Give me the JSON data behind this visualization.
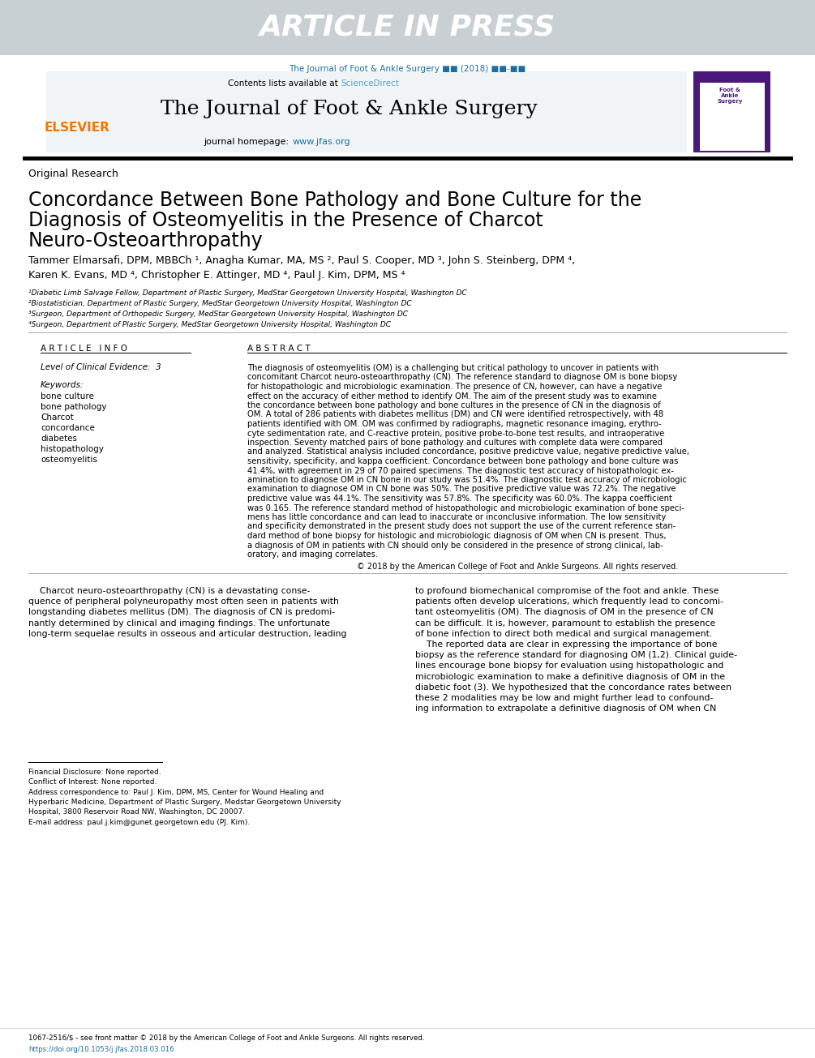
{
  "article_in_press_text": "ARTICLE IN PRESS",
  "article_in_press_bg": "#c8d0d4",
  "article_in_press_color": "#ffffff",
  "journal_line": "The Journal of Foot & Ankle Surgery ■■ (2018) ■■-■■",
  "journal_line_color": "#1a6fa0",
  "contents_text": "Contents lists available at ",
  "science_direct": "ScienceDirect",
  "science_direct_color": "#5ca0c8",
  "journal_title": "The Journal of Foot & Ankle Surgery",
  "journal_homepage_prefix": "journal homepage: ",
  "journal_homepage_url": "www.jfas.org",
  "journal_homepage_color": "#1a6fa0",
  "elsevier_color": "#f07800",
  "section_label": "Original Research",
  "paper_title_line1": "Concordance Between Bone Pathology and Bone Culture for the",
  "paper_title_line2": "Diagnosis of Osteomyelitis in the Presence of Charcot",
  "paper_title_line3": "Neuro-Osteoarthropathy",
  "authors": "Tammer Elmarsafi, DPM, MBBCh ¹, Anagha Kumar, MA, MS ², Paul S. Cooper, MD ³, John S. Steinberg, DPM ⁴,",
  "authors2": "Karen K. Evans, MD ⁴, Christopher E. Attinger, MD ⁴, Paul J. Kim, DPM, MS ⁴",
  "affil1": "¹Diabetic Limb Salvage Fellow, Department of Plastic Surgery, MedStar Georgetown University Hospital, Washington DC",
  "affil2": "²Biostatistician, Department of Plastic Surgery, MedStar Georgetown University Hospital, Washington DC",
  "affil3": "³Surgeon, Department of Orthopedic Surgery, MedStar Georgetown University Hospital, Washington DC",
  "affil4": "⁴Surgeon, Department of Plastic Surgery, MedStar Georgetown University Hospital, Washington DC",
  "article_info_header": "A R T I C L E   I N F O",
  "abstract_header": "A B S T R A C T",
  "level_evidence": "Level of Clinical Evidence:  3",
  "keywords_label": "Keywords:",
  "keywords": [
    "bone culture",
    "bone pathology",
    "Charcot",
    "concordance",
    "diabetes",
    "histopathology",
    "osteomyelitis"
  ],
  "abstract_lines": [
    "The diagnosis of osteomyelitis (OM) is a challenging but critical pathology to uncover in patients with",
    "concomitant Charcot neuro-osteoarthropathy (CN). The reference standard to diagnose OM is bone biopsy",
    "for histopathologic and microbiologic examination. The presence of CN, however, can have a negative",
    "effect on the accuracy of either method to identify OM. The aim of the present study was to examine",
    "the concordance between bone pathology and bone cultures in the presence of CN in the diagnosis of",
    "OM. A total of 286 patients with diabetes mellitus (DM) and CN were identified retrospectively, with 48",
    "patients identified with OM. OM was confirmed by radiographs, magnetic resonance imaging, erythro-",
    "cyte sedimentation rate, and C-reactive protein, positive probe-to-bone test results, and intraoperative",
    "inspection. Seventy matched pairs of bone pathology and cultures with complete data were compared",
    "and analyzed. Statistical analysis included concordance, positive predictive value, negative predictive value,",
    "sensitivity, specificity, and kappa coefficient. Concordance between bone pathology and bone culture was",
    "41.4%, with agreement in 29 of 70 paired specimens. The diagnostic test accuracy of histopathologic ex-",
    "amination to diagnose OM in CN bone in our study was 51.4%. The diagnostic test accuracy of microbiologic",
    "examination to diagnose OM in CN bone was 50%. The positive predictive value was 72.2%. The negative",
    "predictive value was 44.1%. The sensitivity was 57.8%. The specificity was 60.0%. The kappa coefficient",
    "was 0.165. The reference standard method of histopathologic and microbiologic examination of bone speci-",
    "mens has little concordance and can lead to inaccurate or inconclusive information. The low sensitivity",
    "and specificity demonstrated in the present study does not support the use of the current reference stan-",
    "dard method of bone biopsy for histologic and microbiologic diagnosis of OM when CN is present. Thus,",
    "a diagnosis of OM in patients with CN should only be considered in the presence of strong clinical, lab-",
    "oratory, and imaging correlates."
  ],
  "copyright_text": "© 2018 by the American College of Foot and Ankle Surgeons. All rights reserved.",
  "body_left_lines": [
    "    Charcot neuro-osteoarthropathy (CN) is a devastating conse-",
    "quence of peripheral polyneuropathy most often seen in patients with",
    "longstanding diabetes mellitus (DM). The diagnosis of CN is predomi-",
    "nantly determined by clinical and imaging findings. The unfortunate",
    "long-term sequelae results in osseous and articular destruction, leading"
  ],
  "body_right_lines": [
    "to profound biomechanical compromise of the foot and ankle. These",
    "patients often develop ulcerations, which frequently lead to concomi-",
    "tant osteomyelitis (OM). The diagnosis of OM in the presence of CN",
    "can be difficult. It is, however, paramount to establish the presence",
    "of bone infection to direct both medical and surgical management.",
    "    The reported data are clear in expressing the importance of bone",
    "biopsy as the reference standard for diagnosing OM (1,2). Clinical guide-",
    "lines encourage bone biopsy for evaluation using histopathologic and",
    "microbiologic examination to make a definitive diagnosis of OM in the",
    "diabetic foot (3). We hypothesized that the concordance rates between",
    "these 2 modalities may be low and might further lead to confound-",
    "ing information to extrapolate a definitive diagnosis of OM when CN"
  ],
  "financial_disclosure": "Financial Disclosure: None reported.",
  "conflict_interest": "Conflict of Interest: None reported.",
  "address_line1": "Address correspondence to: Paul J. Kim, DPM, MS, Center for Wound Healing and",
  "address_line2": "Hyperbaric Medicine, Department of Plastic Surgery, Medstar Georgetown University",
  "address_line3": "Hospital, 3800 Reservoir Road NW, Washington, DC 20007.",
  "email_line": "E-mail address: paul.j.kim@gunet.georgetown.edu (PJ. Kim).",
  "issn_line": "1067-2516/$ - see front matter © 2018 by the American College of Foot and Ankle Surgeons. All rights reserved.",
  "doi_line": "https://doi.org/10.1053/j.jfas.2018.03.016",
  "doi_color": "#1a6fa0",
  "info_bg_color": "#f0f4f6",
  "purple_bar_color": "#4a1878"
}
